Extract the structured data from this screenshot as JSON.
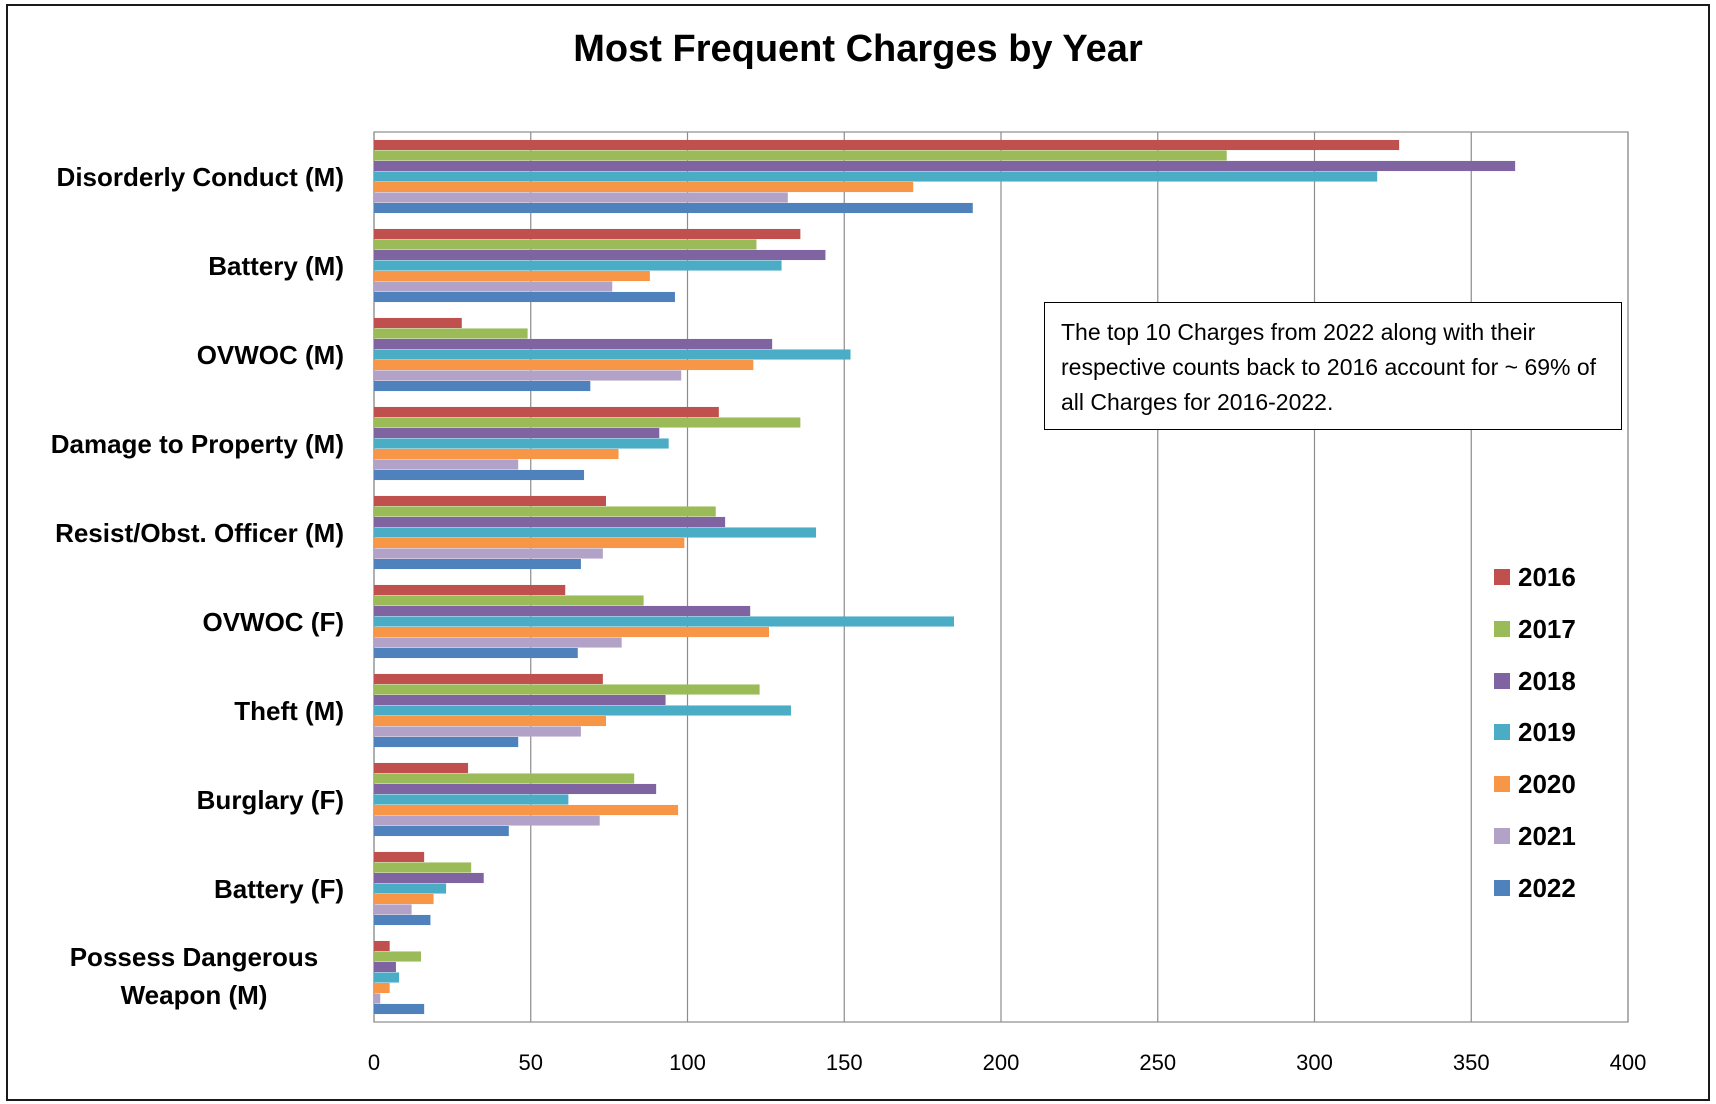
{
  "chart_data": {
    "type": "bar",
    "orientation": "horizontal",
    "title": "Most Frequent Charges by Year",
    "xlabel": "",
    "ylabel": "",
    "xlim": [
      0,
      400
    ],
    "x_ticks": [
      "0",
      "50",
      "100",
      "150",
      "200",
      "250",
      "300",
      "350",
      "400"
    ],
    "grid": "vertical major gridlines",
    "legend_position": "right",
    "categories": [
      "Disorderly Conduct (M)",
      "Battery (M)",
      "OVWOC (M)",
      "Damage to Property (M)",
      "Resist/Obst. Officer (M)",
      "OVWOC (F)",
      "Theft (M)",
      "Burglary (F)",
      "Battery (F)",
      "Possess Dangerous Weapon (M)"
    ],
    "series": [
      {
        "name": "2016",
        "color": "#c0504d",
        "values": [
          327,
          136,
          28,
          110,
          74,
          61,
          73,
          30,
          16,
          5
        ]
      },
      {
        "name": "2017",
        "color": "#9bbb59",
        "values": [
          272,
          122,
          49,
          136,
          109,
          86,
          123,
          83,
          31,
          15
        ]
      },
      {
        "name": "2018",
        "color": "#8064a2",
        "values": [
          364,
          144,
          127,
          91,
          112,
          120,
          93,
          90,
          35,
          7
        ]
      },
      {
        "name": "2019",
        "color": "#4bacc6",
        "values": [
          320,
          130,
          152,
          94,
          141,
          185,
          133,
          62,
          23,
          8
        ]
      },
      {
        "name": "2020",
        "color": "#f79646",
        "values": [
          172,
          88,
          121,
          78,
          99,
          126,
          74,
          97,
          19,
          5
        ]
      },
      {
        "name": "2021",
        "color": "#b3a2c7",
        "values": [
          132,
          76,
          98,
          46,
          73,
          79,
          66,
          72,
          12,
          2
        ]
      },
      {
        "name": "2022",
        "color": "#4f81bd",
        "values": [
          191,
          96,
          69,
          67,
          66,
          65,
          46,
          43,
          18,
          16
        ]
      }
    ],
    "annotation": "The top 10 Charges from 2022 along with their respective counts back to 2016 account for ~ 69% of all Charges for 2016-2022."
  }
}
